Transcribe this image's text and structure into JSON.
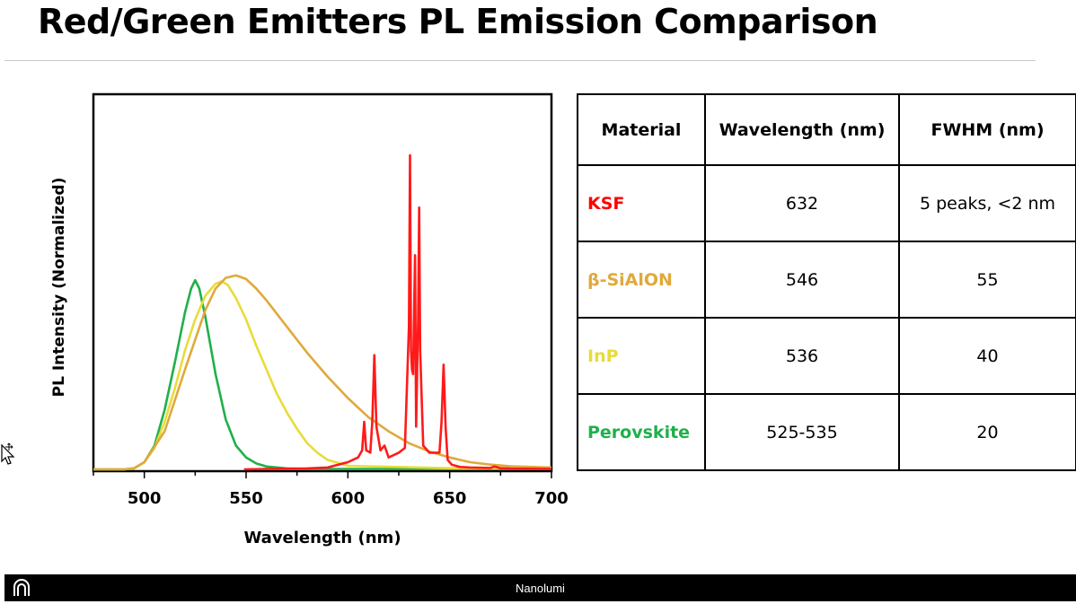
{
  "title": "Red/Green Emitters PL Emission Comparison",
  "chart_data": {
    "type": "line",
    "xlabel": "Wavelength (nm)",
    "ylabel": "PL Intensity (Normalized)",
    "xlim": [
      475,
      700
    ],
    "ylim": [
      0,
      1.0
    ],
    "xticks": [
      500,
      550,
      600,
      650,
      700
    ],
    "xtick_labels": [
      "500",
      "550",
      "600",
      "650",
      "700"
    ],
    "grid": false,
    "series": [
      {
        "color": "#1fb04b",
        "x": [
          475,
          490,
          495,
          500,
          505,
          510,
          515,
          520,
          523,
          525,
          527,
          530,
          535,
          540,
          545,
          550,
          555,
          560,
          570,
          580,
          600,
          650,
          700
        ],
        "y": [
          0.0,
          0.0,
          0.004,
          0.03,
          0.1,
          0.25,
          0.45,
          0.66,
          0.76,
          0.795,
          0.76,
          0.64,
          0.4,
          0.21,
          0.1,
          0.05,
          0.025,
          0.012,
          0.004,
          0.002,
          0.002,
          0.002,
          0.002
        ]
      },
      {
        "color": "#e8dc3a",
        "x": [
          475,
          490,
          495,
          500,
          505,
          510,
          515,
          520,
          525,
          530,
          535,
          538,
          541,
          545,
          550,
          555,
          560,
          565,
          570,
          575,
          580,
          585,
          590,
          600,
          650,
          700
        ],
        "y": [
          0.0,
          0.0,
          0.004,
          0.03,
          0.09,
          0.2,
          0.34,
          0.5,
          0.63,
          0.73,
          0.78,
          0.79,
          0.775,
          0.72,
          0.63,
          0.52,
          0.42,
          0.32,
          0.24,
          0.17,
          0.11,
          0.07,
          0.04,
          0.015,
          0.005,
          0.005
        ]
      },
      {
        "color": "#e0a93b",
        "x": [
          475,
          490,
          495,
          500,
          510,
          520,
          530,
          535,
          540,
          545,
          550,
          555,
          560,
          570,
          580,
          590,
          600,
          610,
          620,
          630,
          640,
          650,
          660,
          670,
          680,
          700
        ],
        "y": [
          0.0,
          0.0,
          0.005,
          0.03,
          0.16,
          0.42,
          0.67,
          0.76,
          0.805,
          0.815,
          0.8,
          0.76,
          0.71,
          0.6,
          0.49,
          0.39,
          0.3,
          0.22,
          0.16,
          0.11,
          0.075,
          0.05,
          0.03,
          0.02,
          0.013,
          0.008
        ]
      },
      {
        "color": "#ff1a1a",
        "x": [
          549,
          560,
          580,
          590,
          600,
          605,
          607,
          608,
          609,
          611,
          612,
          613,
          614,
          616,
          618,
          620,
          625,
          628,
          630,
          630.5,
          631,
          631.5,
          632,
          633,
          633.5,
          634.5,
          635,
          635.5,
          637,
          640,
          645,
          646,
          647,
          648,
          649,
          651,
          655,
          660,
          670,
          672,
          675,
          680,
          700
        ],
        "y": [
          0.0,
          0.002,
          0.004,
          0.008,
          0.03,
          0.05,
          0.08,
          0.2,
          0.08,
          0.07,
          0.2,
          0.48,
          0.18,
          0.08,
          0.1,
          0.05,
          0.07,
          0.09,
          0.6,
          1.32,
          0.5,
          0.42,
          0.4,
          0.9,
          0.18,
          0.62,
          1.1,
          0.5,
          0.1,
          0.07,
          0.07,
          0.2,
          0.44,
          0.18,
          0.04,
          0.02,
          0.01,
          0.008,
          0.006,
          0.012,
          0.005,
          0.003,
          0.002
        ]
      }
    ]
  },
  "table": {
    "headers": [
      "Material",
      "Wavelength (nm)",
      "FWHM (nm)"
    ],
    "rows": [
      {
        "material": "KSF",
        "color": "#ff0000",
        "wavelength": "632",
        "fwhm": "5 peaks, <2 nm"
      },
      {
        "material": "β-SiAlON",
        "color": "#e0a93b",
        "wavelength": "546",
        "fwhm": "55"
      },
      {
        "material": "InP",
        "color": "#e8dc3a",
        "wavelength": "536",
        "fwhm": "40"
      },
      {
        "material": "Perovskite",
        "color": "#1fb04b",
        "wavelength": "525-535",
        "fwhm": "20"
      }
    ]
  },
  "footer": {
    "text": "Nanolumi",
    "logo_icon": "arch-logo-icon"
  },
  "cursor_icon": "move-cursor-icon"
}
